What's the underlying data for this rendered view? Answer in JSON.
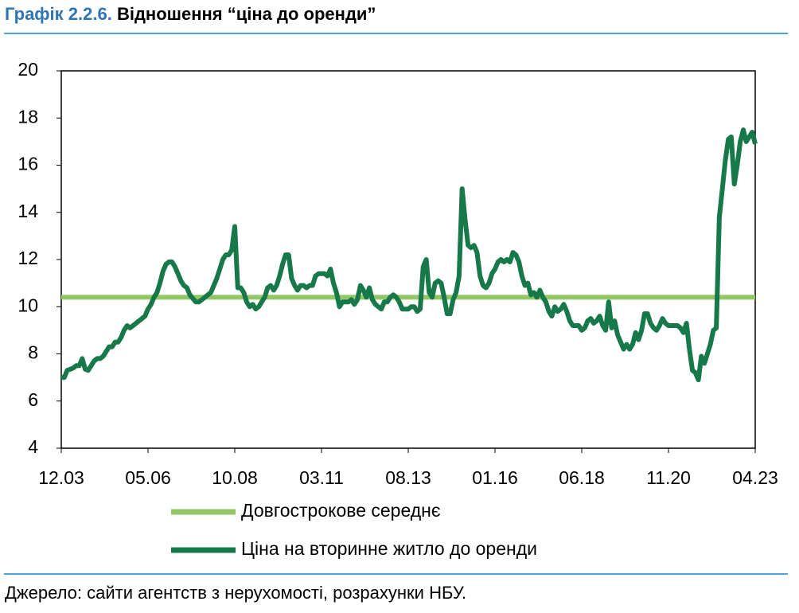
{
  "chart_data": {
    "type": "line",
    "title_prefix": "Графік 2.2.6.",
    "title": "Відношення “ціна до оренди”",
    "source": "Джерело: сайти агентств з нерухомості, розрахунки НБУ.",
    "categories": [
      "12.03",
      null,
      null,
      null,
      null,
      null,
      null,
      null,
      null,
      null,
      null,
      null,
      null,
      null,
      null,
      null,
      null,
      null,
      null,
      null,
      null,
      null,
      null,
      null,
      null,
      null,
      null,
      null,
      null,
      "05.06",
      null,
      null,
      null,
      null,
      null,
      null,
      null,
      null,
      null,
      null,
      null,
      null,
      null,
      null,
      null,
      null,
      null,
      null,
      null,
      null,
      null,
      null,
      null,
      null,
      null,
      null,
      null,
      null,
      "10.08",
      null,
      null,
      null,
      null,
      null,
      null,
      null,
      null,
      null,
      null,
      null,
      null,
      null,
      null,
      null,
      null,
      null,
      null,
      null,
      null,
      null,
      null,
      null,
      null,
      null,
      null,
      null,
      null,
      "03.11",
      null,
      null,
      null,
      null,
      null,
      null,
      null,
      null,
      null,
      null,
      null,
      null,
      null,
      null,
      null,
      null,
      null,
      null,
      null,
      null,
      null,
      null,
      null,
      null,
      null,
      null,
      null,
      null,
      "08.13",
      null,
      null,
      null,
      null,
      null,
      null,
      null,
      null,
      null,
      null,
      null,
      null,
      null,
      null,
      null,
      null,
      null,
      null,
      null,
      null,
      null,
      null,
      null,
      null,
      null,
      null,
      null,
      null,
      "01.16",
      null,
      null,
      null,
      null,
      null,
      null,
      null,
      null,
      null,
      null,
      null,
      null,
      null,
      null,
      null,
      null,
      null,
      null,
      null,
      null,
      null,
      null,
      null,
      null,
      null,
      null,
      null,
      null,
      "06.18",
      null,
      null,
      null,
      null,
      null,
      null,
      null,
      null,
      null,
      null,
      null,
      null,
      null,
      null,
      null,
      null,
      null,
      null,
      null,
      null,
      null,
      null,
      null,
      null,
      null,
      null,
      null,
      null,
      "11.20",
      null,
      null,
      null,
      null,
      null,
      null,
      null,
      null,
      null,
      null,
      null,
      null,
      null,
      null,
      null,
      null,
      null,
      null,
      null,
      null,
      null,
      null,
      null,
      null,
      null,
      null,
      null,
      null,
      "04.23"
    ],
    "average": {
      "name": "Довгострокове середнє",
      "value": 10.4,
      "color": "#92c765"
    },
    "series": [
      {
        "name": "Ціна на вторинне житло до оренди",
        "color": "#17784a",
        "values": [
          7.0,
          7.0,
          7.3,
          7.35,
          7.4,
          7.5,
          7.5,
          7.8,
          7.35,
          7.3,
          7.5,
          7.7,
          7.8,
          7.8,
          7.9,
          8.1,
          8.3,
          8.3,
          8.5,
          8.5,
          8.7,
          9.0,
          9.2,
          9.1,
          9.2,
          9.3,
          9.4,
          9.5,
          9.6,
          9.9,
          10.1,
          10.4,
          10.6,
          11.0,
          11.5,
          11.8,
          11.9,
          11.9,
          11.7,
          11.4,
          11.1,
          10.9,
          10.8,
          10.5,
          10.35,
          10.2,
          10.2,
          10.3,
          10.4,
          10.5,
          10.6,
          10.9,
          11.2,
          11.6,
          12.0,
          12.2,
          12.2,
          12.4,
          13.4,
          10.8,
          10.8,
          10.6,
          10.2,
          10.0,
          10.1,
          9.9,
          10.0,
          10.2,
          10.4,
          10.8,
          10.9,
          10.7,
          10.9,
          11.3,
          11.8,
          12.2,
          12.2,
          11.2,
          10.9,
          10.7,
          10.9,
          10.9,
          10.8,
          10.9,
          10.9,
          11.3,
          11.4,
          11.4,
          11.4,
          11.3,
          11.6,
          11.0,
          10.6,
          10.0,
          10.2,
          10.2,
          10.2,
          10.3,
          10.1,
          10.3,
          10.9,
          10.7,
          10.4,
          10.8,
          10.3,
          10.1,
          10.0,
          9.9,
          10.2,
          10.2,
          10.4,
          10.5,
          10.4,
          10.2,
          9.9,
          9.9,
          9.9,
          10.0,
          10.0,
          9.8,
          9.9,
          11.7,
          12.0,
          10.6,
          10.4,
          11.0,
          11.1,
          11.0,
          10.4,
          9.7,
          9.7,
          10.3,
          10.6,
          11.3,
          15.0,
          13.7,
          12.6,
          12.5,
          12.6,
          12.3,
          11.3,
          10.9,
          10.8,
          11.0,
          11.4,
          11.6,
          11.9,
          12.0,
          11.9,
          12.0,
          11.9,
          12.3,
          12.2,
          11.9,
          11.3,
          10.9,
          11.0,
          10.5,
          10.6,
          10.4,
          10.7,
          10.4,
          10.2,
          9.8,
          9.6,
          10.0,
          9.8,
          9.9,
          10.1,
          9.8,
          9.4,
          9.2,
          9.2,
          9.2,
          9.0,
          9.1,
          9.4,
          9.5,
          9.3,
          9.4,
          9.6,
          9.2,
          9.0,
          10.2,
          9.1,
          9.4,
          8.8,
          8.5,
          8.2,
          8.4,
          8.2,
          8.4,
          8.9,
          8.6,
          9.0,
          9.7,
          9.7,
          9.3,
          9.1,
          9.0,
          9.2,
          9.5,
          9.3,
          9.2,
          9.2,
          9.2,
          9.2,
          9.1,
          8.9,
          9.3,
          8.2,
          7.3,
          7.2,
          6.9,
          7.9,
          7.6,
          8.0,
          8.4,
          9.0,
          9.1,
          13.8,
          15.0,
          16.2,
          17.1,
          17.2,
          15.2,
          16.0,
          17.0,
          17.5,
          17.0,
          17.2,
          17.4,
          16.9
        ]
      }
    ],
    "ylim": [
      4,
      20
    ],
    "yticks": [
      4,
      6,
      8,
      10,
      12,
      14,
      16,
      18,
      20
    ]
  }
}
